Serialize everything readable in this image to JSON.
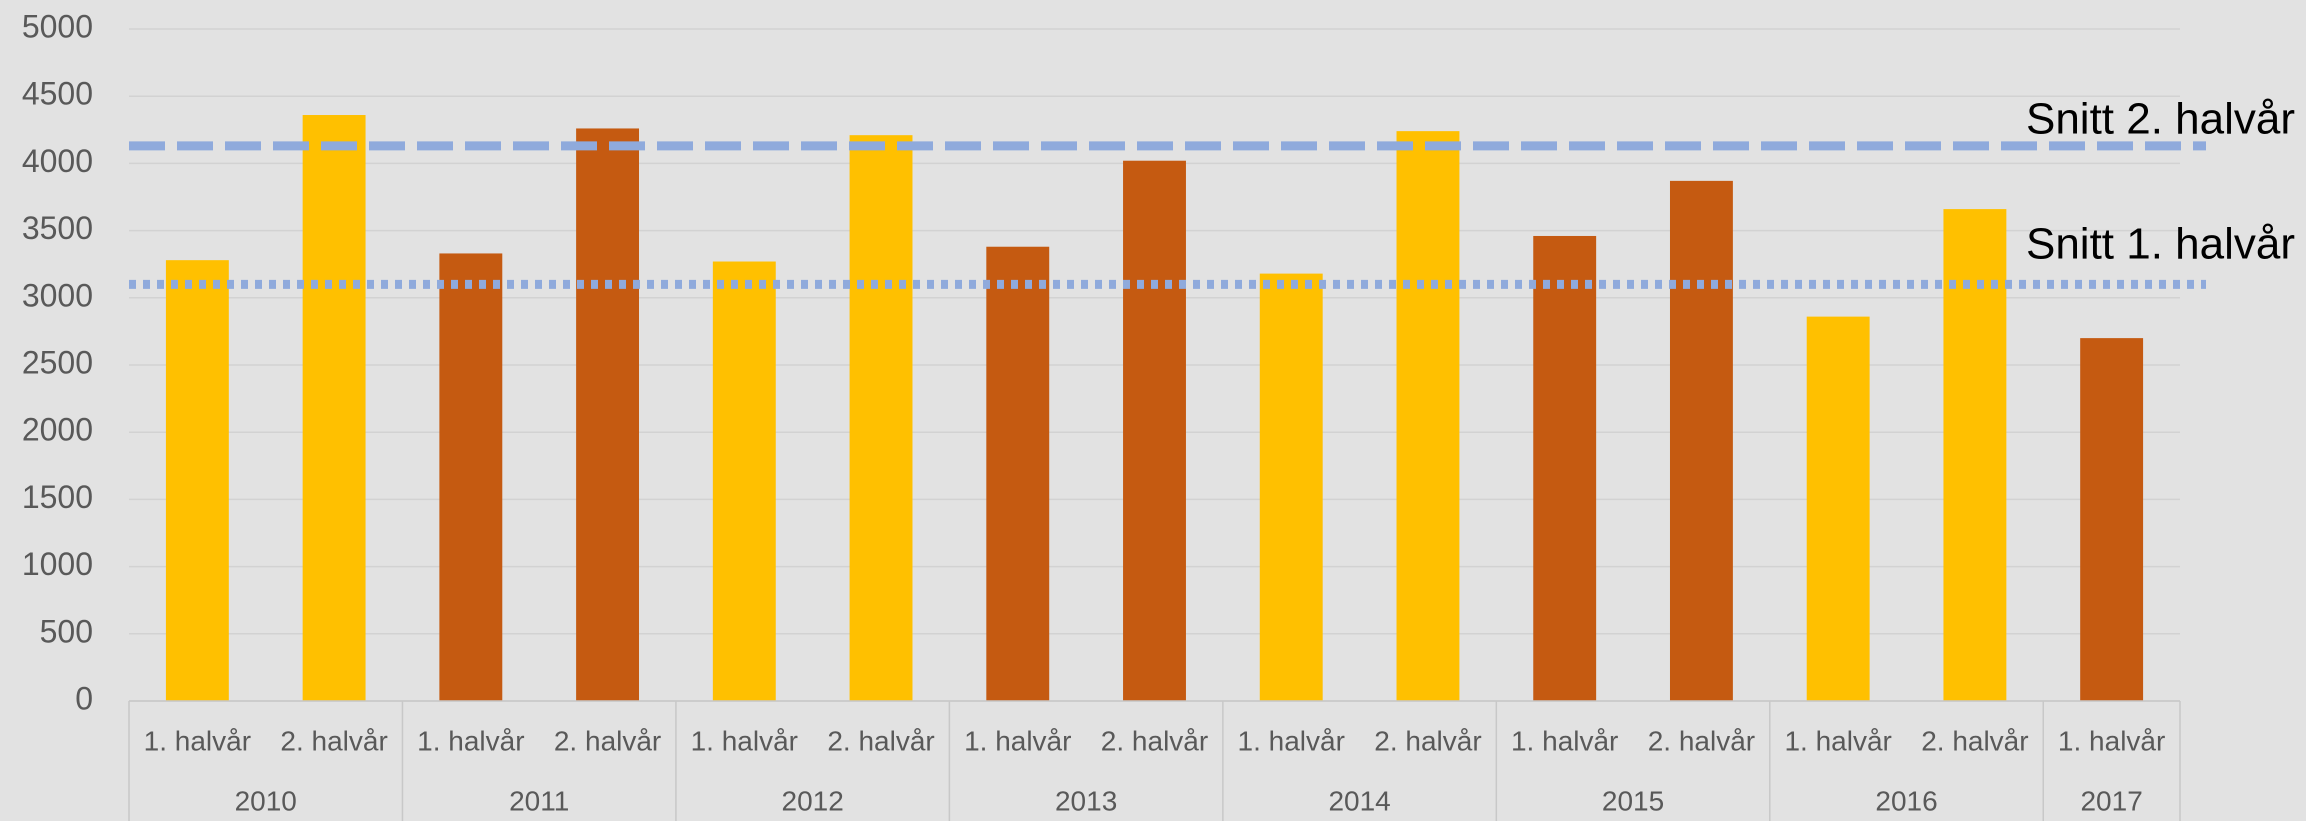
{
  "chart_data": {
    "type": "bar",
    "groups": [
      {
        "label": "2010",
        "color": "#ffc000",
        "categories": [
          "1. halvår",
          "2. halvår"
        ],
        "values": [
          3280,
          4360
        ]
      },
      {
        "label": "2011",
        "color": "#c55a11",
        "categories": [
          "1. halvår",
          "2. halvår"
        ],
        "values": [
          3330,
          4260
        ]
      },
      {
        "label": "2012",
        "color": "#ffc000",
        "categories": [
          "1. halvår",
          "2. halvår"
        ],
        "values": [
          3270,
          4210
        ]
      },
      {
        "label": "2013",
        "color": "#c55a11",
        "categories": [
          "1. halvår",
          "2. halvår"
        ],
        "values": [
          3380,
          4020
        ]
      },
      {
        "label": "2014",
        "color": "#ffc000",
        "categories": [
          "1. halvår",
          "2. halvår"
        ],
        "values": [
          3180,
          4240
        ]
      },
      {
        "label": "2015",
        "color": "#c55a11",
        "categories": [
          "1. halvår",
          "2. halvår"
        ],
        "values": [
          3460,
          3870
        ]
      },
      {
        "label": "2016",
        "color": "#ffc000",
        "categories": [
          "1. halvår",
          "2. halvår"
        ],
        "values": [
          2860,
          3660
        ]
      },
      {
        "label": "2017",
        "color": "#c55a11",
        "categories": [
          "1. halvår"
        ],
        "values": [
          2700
        ]
      }
    ],
    "reference_lines": [
      {
        "label": "Snitt 2. halvår",
        "value": 4130,
        "style": "dashed",
        "color": "#8faadc"
      },
      {
        "label": "Snitt 1. halvår",
        "value": 3100,
        "style": "dotted",
        "color": "#8faadc"
      }
    ],
    "ylim": [
      0,
      5000
    ],
    "yticks": [
      0,
      500,
      1000,
      1500,
      2000,
      2500,
      3000,
      3500,
      4000,
      4500,
      5000
    ],
    "grid": true
  }
}
